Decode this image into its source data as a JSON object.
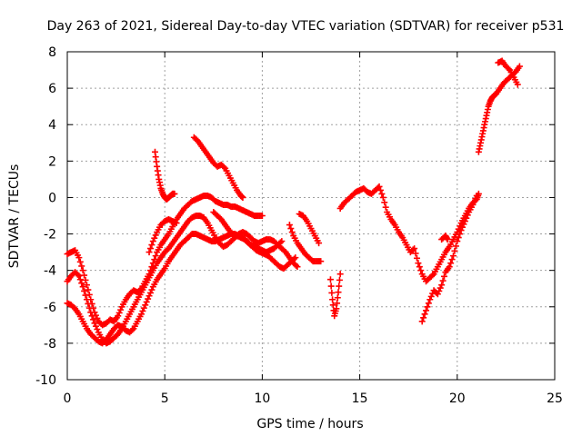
{
  "chart_data": {
    "type": "scatter",
    "title": "Day 263 of 2021, Sidereal Day-to-day VTEC variation (SDTVAR) for receiver p531",
    "xlabel": "GPS time / hours",
    "ylabel": "SDTVAR / TECUs",
    "xlim": [
      0,
      25
    ],
    "ylim": [
      -10,
      8
    ],
    "xticks": [
      0,
      5,
      10,
      15,
      20,
      25
    ],
    "yticks": [
      -10,
      -8,
      -6,
      -4,
      -2,
      0,
      2,
      4,
      6,
      8
    ],
    "grid": true,
    "marker": "plus",
    "marker_color": "#ff0000",
    "series": [
      {
        "x": [
          0.0,
          0.2,
          0.4,
          0.6,
          0.8,
          1.0,
          1.2,
          1.4,
          1.6,
          1.8,
          2.0,
          2.2,
          2.4,
          2.6,
          2.8,
          3.0,
          3.2,
          3.4,
          3.6,
          3.8,
          4.0,
          4.2,
          4.4,
          4.6,
          4.8,
          5.0,
          5.2,
          5.4,
          5.6,
          5.8,
          6.0,
          6.2,
          6.4,
          6.6,
          6.8,
          7.0,
          7.2,
          7.4,
          7.6,
          7.8,
          8.0,
          8.2,
          8.4,
          8.6,
          8.8,
          9.0,
          9.2,
          9.4,
          9.6,
          9.8,
          10.0
        ],
        "y": [
          -3.1,
          -3.0,
          -2.9,
          -3.3,
          -4.0,
          -4.8,
          -5.6,
          -6.3,
          -6.8,
          -7.0,
          -6.9,
          -6.7,
          -6.8,
          -6.5,
          -6.0,
          -5.6,
          -5.3,
          -5.1,
          -5.2,
          -5.0,
          -4.6,
          -4.2,
          -3.6,
          -3.0,
          -2.6,
          -2.3,
          -2.0,
          -1.6,
          -1.2,
          -0.9,
          -0.6,
          -0.4,
          -0.2,
          -0.1,
          0.0,
          0.1,
          0.1,
          0.0,
          -0.2,
          -0.3,
          -0.4,
          -0.4,
          -0.5,
          -0.5,
          -0.6,
          -0.7,
          -0.8,
          -0.9,
          -1.0,
          -1.0,
          -1.0
        ]
      },
      {
        "x": [
          0.0,
          0.2,
          0.4,
          0.6,
          0.8,
          1.0,
          1.2,
          1.4,
          1.6,
          1.8,
          2.0,
          2.2,
          2.4,
          2.6,
          2.8,
          3.0,
          3.2,
          3.4,
          3.6,
          3.8,
          4.0,
          4.2,
          4.4,
          4.6,
          4.8,
          5.0,
          5.2,
          5.4,
          5.6,
          5.8,
          6.0,
          6.2,
          6.4,
          6.6,
          6.8,
          7.0,
          7.2,
          7.4,
          7.6,
          7.8,
          8.0,
          8.2,
          8.4,
          8.6,
          8.8,
          9.0,
          9.2,
          9.4,
          9.6,
          9.8,
          10.0,
          10.2,
          10.4,
          10.6,
          10.8,
          11.0,
          11.2,
          11.4,
          11.6,
          11.8
        ],
        "y": [
          -4.6,
          -4.3,
          -4.1,
          -4.3,
          -4.9,
          -5.6,
          -6.3,
          -6.9,
          -7.4,
          -7.8,
          -8.0,
          -7.9,
          -7.7,
          -7.5,
          -7.2,
          -6.8,
          -6.4,
          -6.0,
          -5.6,
          -5.2,
          -4.8,
          -4.4,
          -4.0,
          -3.6,
          -3.3,
          -3.0,
          -2.8,
          -2.5,
          -2.2,
          -1.9,
          -1.6,
          -1.3,
          -1.1,
          -1.0,
          -1.0,
          -1.1,
          -1.4,
          -1.8,
          -2.2,
          -2.5,
          -2.7,
          -2.6,
          -2.4,
          -2.2,
          -2.0,
          -1.9,
          -2.0,
          -2.2,
          -2.4,
          -2.5,
          -2.4,
          -2.3,
          -2.3,
          -2.4,
          -2.6,
          -2.8,
          -3.0,
          -3.3,
          -3.6,
          -3.8
        ]
      },
      {
        "x": [
          0.0,
          0.2,
          0.4,
          0.6,
          0.8,
          1.0,
          1.2,
          1.4,
          1.6,
          1.8,
          2.0,
          2.2,
          2.4,
          2.6,
          2.8,
          3.0,
          3.2,
          3.4,
          3.6,
          3.8,
          4.0,
          4.2,
          4.4,
          4.6,
          4.8,
          5.0,
          5.2,
          5.4,
          5.6,
          5.8,
          6.0,
          6.2,
          6.4,
          6.6,
          6.8,
          7.0,
          7.2,
          7.4,
          7.6,
          7.8,
          8.0,
          8.2,
          8.4,
          8.6,
          8.8,
          9.0,
          9.2,
          9.4,
          9.6,
          9.8,
          10.0,
          10.2,
          10.4,
          10.6,
          10.8,
          11.0
        ],
        "y": [
          -5.8,
          -5.9,
          -6.1,
          -6.4,
          -6.8,
          -7.2,
          -7.5,
          -7.7,
          -7.9,
          -8.0,
          -7.8,
          -7.5,
          -7.2,
          -7.0,
          -7.1,
          -7.3,
          -7.4,
          -7.2,
          -6.8,
          -6.4,
          -5.9,
          -5.4,
          -4.9,
          -4.5,
          -4.2,
          -3.9,
          -3.5,
          -3.2,
          -2.9,
          -2.6,
          -2.4,
          -2.2,
          -2.0,
          -2.0,
          -2.1,
          -2.2,
          -2.3,
          -2.4,
          -2.4,
          -2.3,
          -2.2,
          -2.1,
          -2.0,
          -2.0,
          -2.1,
          -2.2,
          -2.4,
          -2.6,
          -2.7,
          -2.8,
          -2.9,
          -3.0,
          -2.9,
          -2.8,
          -2.6,
          -2.4
        ]
      },
      {
        "x": [
          4.5,
          4.6,
          4.7,
          4.8,
          4.9,
          5.0,
          5.1,
          5.2,
          5.3,
          5.4,
          5.5
        ],
        "y": [
          2.5,
          1.7,
          1.0,
          0.5,
          0.2,
          0.0,
          -0.1,
          0.0,
          0.1,
          0.2,
          0.2
        ]
      },
      {
        "x": [
          4.2,
          4.4,
          4.6,
          4.8,
          5.0,
          5.2,
          5.4,
          5.6
        ],
        "y": [
          -3.0,
          -2.4,
          -1.9,
          -1.5,
          -1.3,
          -1.2,
          -1.3,
          -1.4
        ]
      },
      {
        "x": [
          6.5,
          6.7,
          6.9,
          7.1,
          7.3,
          7.5,
          7.7,
          7.9,
          8.1,
          8.3,
          8.5,
          8.7,
          8.9,
          9.0
        ],
        "y": [
          3.3,
          3.1,
          2.8,
          2.5,
          2.2,
          1.9,
          1.7,
          1.8,
          1.6,
          1.2,
          0.8,
          0.4,
          0.1,
          0.0
        ]
      },
      {
        "x": [
          7.5,
          7.7,
          7.9,
          8.1,
          8.3,
          8.5,
          8.7,
          8.9,
          9.1,
          9.3,
          9.5,
          9.7,
          9.9,
          10.1,
          10.3,
          10.5,
          10.7,
          10.9,
          11.1,
          11.3,
          11.5,
          11.7
        ],
        "y": [
          -0.8,
          -1.0,
          -1.2,
          -1.5,
          -1.8,
          -2.0,
          -2.1,
          -2.2,
          -2.3,
          -2.5,
          -2.7,
          -2.9,
          -3.0,
          -3.1,
          -3.2,
          -3.4,
          -3.6,
          -3.8,
          -3.9,
          -3.7,
          -3.5,
          -3.3
        ]
      },
      {
        "x": [
          11.4,
          11.6,
          11.8,
          12.0,
          12.2,
          12.4,
          12.6,
          12.8,
          13.0
        ],
        "y": [
          -1.5,
          -2.1,
          -2.5,
          -2.8,
          -3.1,
          -3.3,
          -3.5,
          -3.5,
          -3.5
        ]
      },
      {
        "x": [
          11.9,
          12.1,
          12.3,
          12.5,
          12.7,
          12.9
        ],
        "y": [
          -0.9,
          -1.0,
          -1.3,
          -1.7,
          -2.1,
          -2.5
        ]
      },
      {
        "x": [
          13.5,
          13.6,
          13.7,
          13.8,
          13.9,
          14.0
        ],
        "y": [
          -4.5,
          -5.6,
          -6.5,
          -6.1,
          -5.2,
          -4.2
        ]
      },
      {
        "x": [
          14.0,
          14.2,
          14.4,
          14.6,
          14.8,
          15.0,
          15.2,
          15.4,
          15.6,
          15.8,
          16.0,
          16.2,
          16.4,
          16.6,
          16.8,
          17.0,
          17.2,
          17.4,
          17.6,
          17.8,
          18.0,
          18.2,
          18.4,
          18.6,
          18.8,
          19.0,
          19.2,
          19.4,
          19.6,
          19.8,
          20.0,
          20.2,
          20.4,
          20.6,
          20.8,
          21.0,
          21.1
        ],
        "y": [
          -0.6,
          -0.3,
          -0.1,
          0.1,
          0.3,
          0.4,
          0.5,
          0.3,
          0.2,
          0.4,
          0.6,
          0.0,
          -0.8,
          -1.2,
          -1.5,
          -1.9,
          -2.2,
          -2.6,
          -3.0,
          -2.8,
          -3.6,
          -4.2,
          -4.6,
          -4.4,
          -4.2,
          -3.8,
          -3.4,
          -3.0,
          -2.7,
          -2.3,
          -1.9,
          -1.4,
          -1.0,
          -0.6,
          -0.3,
          -0.1,
          0.2
        ]
      },
      {
        "x": [
          18.2,
          18.4,
          18.6,
          18.8,
          19.0,
          19.2,
          19.4,
          19.6,
          19.8,
          20.0,
          20.2,
          20.4,
          20.6,
          20.8,
          21.0
        ],
        "y": [
          -6.8,
          -6.2,
          -5.6,
          -5.1,
          -5.3,
          -4.8,
          -4.1,
          -3.8,
          -3.2,
          -2.4,
          -1.8,
          -1.3,
          -0.8,
          -0.4,
          0.1
        ]
      },
      {
        "x": [
          19.2,
          19.4,
          19.5
        ],
        "y": [
          -2.3,
          -2.1,
          -2.3
        ]
      },
      {
        "x": [
          21.1,
          21.2,
          21.3,
          21.4,
          21.5,
          21.6,
          21.7,
          21.8,
          21.9,
          22.0,
          22.2,
          22.4,
          22.6,
          22.8,
          23.0,
          23.2
        ],
        "y": [
          2.5,
          3.0,
          3.5,
          4.0,
          4.5,
          5.0,
          5.3,
          5.5,
          5.6,
          5.7,
          6.0,
          6.3,
          6.5,
          6.7,
          6.9,
          7.2
        ]
      },
      {
        "x": [
          22.1,
          22.3,
          22.5,
          22.7,
          22.9,
          23.1
        ],
        "y": [
          7.4,
          7.5,
          7.2,
          7.0,
          6.6,
          6.2
        ]
      }
    ]
  }
}
